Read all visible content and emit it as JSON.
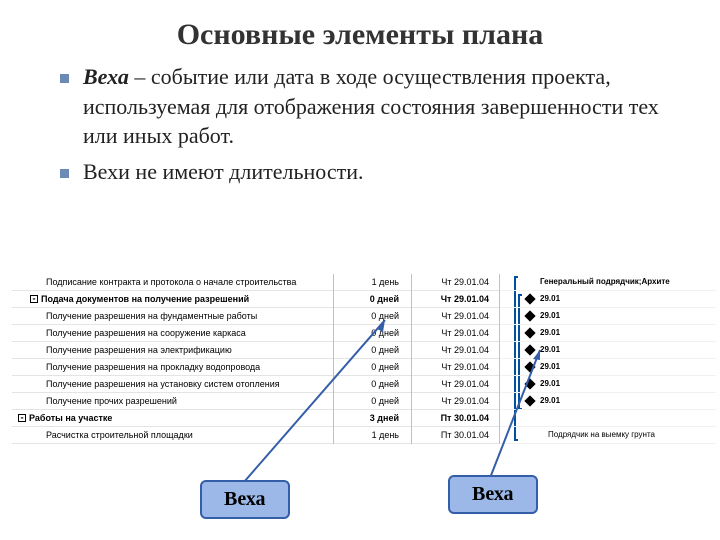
{
  "title": "Основные элементы плана",
  "bullets": [
    {
      "term": "Веха",
      "rest": " – событие или дата в ходе осуществления проекта, используемая для отображения состояния завершенности тех или иных работ."
    },
    {
      "term": null,
      "rest": "Вехи не имеют длительности."
    }
  ],
  "rows": [
    {
      "name": "Подписание контракта и протокола о начале строительства",
      "dur": "1 день",
      "date": "Чт 29.01.04",
      "style": "",
      "indent": 2
    },
    {
      "name": "Подача документов на получение разрешений",
      "dur": "0 дней",
      "date": "Чт 29.01.04",
      "style": "bold",
      "indent": 1,
      "outline": "-"
    },
    {
      "name": "Получение разрешения на фундаментные работы",
      "dur": "0 дней",
      "date": "Чт 29.01.04",
      "style": "",
      "indent": 2
    },
    {
      "name": "Получение разрешения на сооружение каркаса",
      "dur": "0 дней",
      "date": "Чт 29.01.04",
      "style": "",
      "indent": 2
    },
    {
      "name": "Получение разрешения на электрификацию",
      "dur": "0 дней",
      "date": "Чт 29.01.04",
      "style": "",
      "indent": 2
    },
    {
      "name": "Получение разрешения на прокладку водопровода",
      "dur": "0 дней",
      "date": "Чт 29.01.04",
      "style": "",
      "indent": 2
    },
    {
      "name": "Получение разрешения на установку систем отопления",
      "dur": "0 дней",
      "date": "Чт 29.01.04",
      "style": "",
      "indent": 2
    },
    {
      "name": "Получение прочих разрешений",
      "dur": "0 дней",
      "date": "Чт 29.01.04",
      "style": "",
      "indent": 2
    },
    {
      "name": "Работы на участке",
      "dur": "3 дней",
      "date": "Пт 30.01.04",
      "style": "bold",
      "indent": 0,
      "outline": "-"
    },
    {
      "name": "Расчистка строительной площадки",
      "dur": "1 день",
      "date": "Пт 30.01.04",
      "style": "",
      "indent": 2
    }
  ],
  "gantt": {
    "top_caption": "Генеральный подрядчик;Архите",
    "bottom_caption": "Подрядчик на выемку грунта",
    "ms_date": "29.01",
    "diamond_color": "#000000",
    "bracket_color": "#0050a0",
    "milestone_rows": [
      2,
      3,
      4,
      5,
      6,
      7,
      8
    ]
  },
  "callouts": {
    "left": "Веха",
    "right": "Веха",
    "bg": "#9cb8e8",
    "border": "#355ea8"
  },
  "colors": {
    "bullet": "#6b8ab5"
  }
}
